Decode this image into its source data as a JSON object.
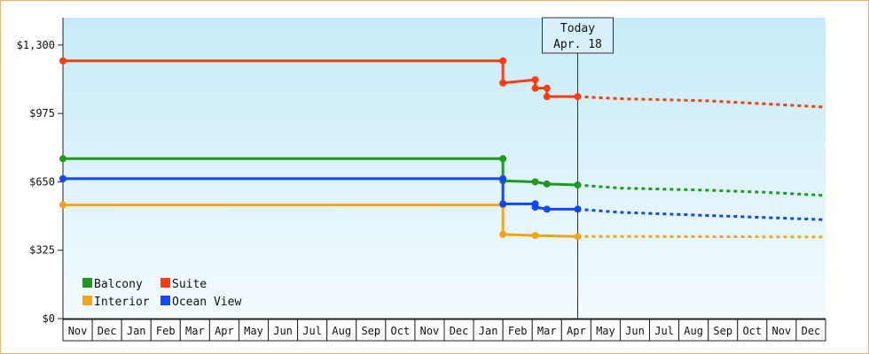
{
  "chart_data": {
    "type": "line",
    "title": "",
    "xlabel": "",
    "ylabel": "",
    "ylim": [
      0,
      1430
    ],
    "y_ticks": [
      {
        "value": 0,
        "label": "$0"
      },
      {
        "value": 325,
        "label": "$325"
      },
      {
        "value": 650,
        "label": "$650"
      },
      {
        "value": 975,
        "label": "$975"
      },
      {
        "value": 1300,
        "label": "$1,300"
      }
    ],
    "months": [
      "Nov",
      "Dec",
      "Jan",
      "Feb",
      "Mar",
      "Apr",
      "May",
      "Jun",
      "Jul",
      "Aug",
      "Sep",
      "Oct",
      "Nov",
      "Dec",
      "Jan",
      "Feb",
      "Mar",
      "Apr",
      "May",
      "Jun",
      "Jul",
      "Aug",
      "Sep",
      "Oct",
      "Nov",
      "Dec"
    ],
    "x_domain": [
      0,
      26
    ],
    "today": {
      "x": 17.55,
      "label_line1": "Today",
      "label_line2": "Apr. 18"
    },
    "grid": false,
    "legend_position": "bottom-left",
    "series": [
      {
        "name": "Balcony",
        "color": "#1f9a1f",
        "actual": [
          [
            0,
            760
          ],
          [
            15,
            760
          ],
          [
            15,
            655
          ],
          [
            16.1,
            650
          ],
          [
            16.5,
            640
          ],
          [
            17.55,
            635
          ]
        ],
        "markers": [
          0,
          15,
          15.05,
          16.1,
          16.5,
          17.55
        ],
        "forecast": [
          [
            17.55,
            635
          ],
          [
            19,
            620
          ],
          [
            22,
            610
          ],
          [
            24,
            600
          ],
          [
            26,
            585
          ]
        ]
      },
      {
        "name": "Suite",
        "color": "#ff3d0f",
        "actual": [
          [
            0,
            1225
          ],
          [
            15,
            1225
          ],
          [
            15,
            1120
          ],
          [
            16.1,
            1135
          ],
          [
            16.1,
            1095
          ],
          [
            16.5,
            1095
          ],
          [
            16.5,
            1055
          ],
          [
            17.55,
            1055
          ]
        ],
        "markers": [
          0,
          15,
          15.05,
          16.1,
          16.1,
          16.5,
          16.5,
          17.55
        ],
        "forecast": [
          [
            17.55,
            1055
          ],
          [
            19,
            1045
          ],
          [
            22,
            1035
          ],
          [
            24,
            1020
          ],
          [
            26,
            1005
          ]
        ]
      },
      {
        "name": "Interior",
        "color": "#f3a51a",
        "actual": [
          [
            0,
            540
          ],
          [
            15,
            540
          ],
          [
            15,
            400
          ],
          [
            16.1,
            395
          ],
          [
            17.55,
            390
          ]
        ],
        "markers": [
          0,
          15.05,
          16.1,
          17.55
        ],
        "forecast": [
          [
            17.55,
            390
          ],
          [
            20,
            390
          ],
          [
            26,
            388
          ]
        ]
      },
      {
        "name": "Ocean View",
        "color": "#1446ff",
        "actual": [
          [
            0,
            665
          ],
          [
            15,
            665
          ],
          [
            15,
            545
          ],
          [
            16.1,
            545
          ],
          [
            16.1,
            530
          ],
          [
            16.5,
            520
          ],
          [
            17.55,
            520
          ]
        ],
        "markers": [
          0,
          15,
          15.05,
          16.1,
          16.1,
          16.5,
          17.55
        ],
        "forecast": [
          [
            17.55,
            520
          ],
          [
            19,
            505
          ],
          [
            22,
            490
          ],
          [
            24,
            480
          ],
          [
            26,
            470
          ]
        ]
      }
    ],
    "legend": [
      {
        "name": "Balcony",
        "color": "#1f9a1f"
      },
      {
        "name": "Suite",
        "color": "#ff3d0f"
      },
      {
        "name": "Interior",
        "color": "#f3a51a"
      },
      {
        "name": "Ocean View",
        "color": "#1446ff"
      }
    ]
  }
}
